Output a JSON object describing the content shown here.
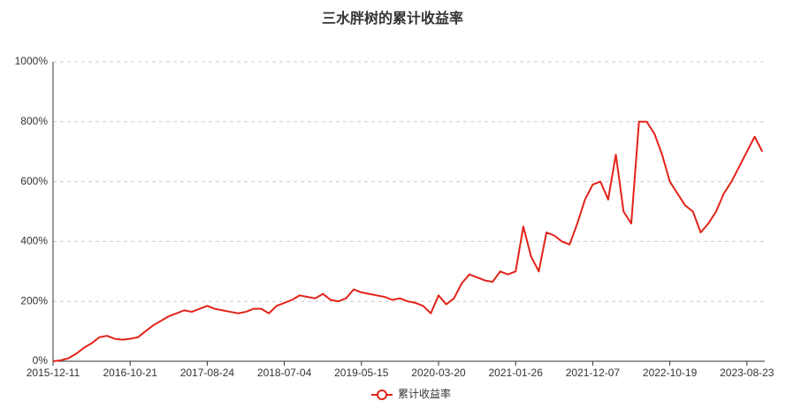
{
  "chart_data": {
    "type": "line",
    "title": "三水胖树的累计收益率",
    "categories": [
      "2015-12-11",
      null,
      null,
      null,
      null,
      null,
      null,
      null,
      null,
      null,
      "2016-10-21",
      null,
      null,
      null,
      null,
      null,
      null,
      null,
      null,
      null,
      "2017-08-24",
      null,
      null,
      null,
      null,
      null,
      null,
      null,
      null,
      null,
      "2018-07-04",
      null,
      null,
      null,
      null,
      null,
      null,
      null,
      null,
      null,
      "2019-05-15",
      null,
      null,
      null,
      null,
      null,
      null,
      null,
      null,
      null,
      "2020-03-20",
      null,
      null,
      null,
      null,
      null,
      null,
      null,
      null,
      null,
      "2021-01-26",
      null,
      null,
      null,
      null,
      null,
      null,
      null,
      null,
      null,
      "2021-12-07",
      null,
      null,
      null,
      null,
      null,
      null,
      null,
      null,
      null,
      "2022-10-19",
      null,
      null,
      null,
      null,
      null,
      null,
      null,
      null,
      null,
      "2023-08-23",
      null,
      null
    ],
    "series": [
      {
        "name": "累计收益率",
        "color": "#e2231a",
        "values": [
          0,
          3,
          10,
          25,
          45,
          60,
          80,
          85,
          75,
          72,
          75,
          80,
          100,
          120,
          135,
          150,
          160,
          170,
          165,
          175,
          185,
          175,
          170,
          165,
          160,
          165,
          175,
          175,
          160,
          185,
          195,
          205,
          220,
          215,
          210,
          225,
          205,
          200,
          210,
          240,
          230,
          225,
          220,
          215,
          205,
          210,
          200,
          195,
          185,
          160,
          220,
          190,
          210,
          260,
          290,
          280,
          270,
          265,
          300,
          290,
          300,
          450,
          350,
          300,
          430,
          420,
          400,
          390,
          460,
          540,
          590,
          600,
          540,
          690,
          500,
          460,
          800,
          800,
          760,
          690,
          600,
          560,
          520,
          500,
          430,
          460,
          500,
          560,
          600,
          650,
          700,
          750,
          700
        ]
      }
    ],
    "ylim": [
      0,
      1000
    ],
    "yticks": [
      {
        "value": 0,
        "label": "0%"
      },
      {
        "value": 200,
        "label": "200%"
      },
      {
        "value": 400,
        "label": "400%"
      },
      {
        "value": 600,
        "label": "600%"
      },
      {
        "value": 800,
        "label": "800%"
      },
      {
        "value": 1000,
        "label": "1000%"
      }
    ],
    "grid": true,
    "legend": "bottom"
  }
}
